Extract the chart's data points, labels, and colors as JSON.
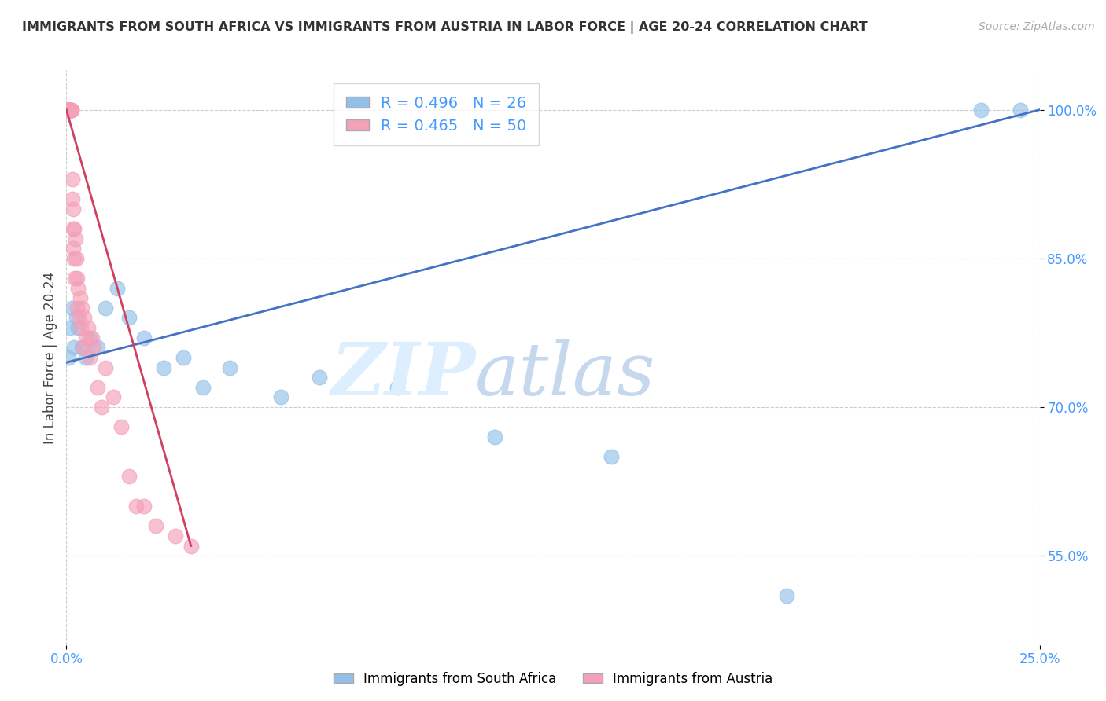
{
  "title": "IMMIGRANTS FROM SOUTH AFRICA VS IMMIGRANTS FROM AUSTRIA IN LABOR FORCE | AGE 20-24 CORRELATION CHART",
  "source": "Source: ZipAtlas.com",
  "ylabel": "In Labor Force | Age 20-24",
  "x_min": 0.0,
  "x_max": 25.0,
  "y_min": 46.0,
  "y_max": 104.0,
  "yticks": [
    55.0,
    70.0,
    85.0,
    100.0
  ],
  "ytick_labels": [
    "55.0%",
    "70.0%",
    "85.0%",
    "100.0%"
  ],
  "legend_label_blue": "Immigrants from South Africa",
  "legend_label_pink": "Immigrants from Austria",
  "R_blue": 0.496,
  "N_blue": 26,
  "R_pink": 0.465,
  "N_pink": 50,
  "blue_color": "#92C0E8",
  "pink_color": "#F4A0B8",
  "blue_line_color": "#4472C4",
  "pink_line_color": "#D04060",
  "blue_x": [
    0.05,
    0.1,
    0.15,
    0.2,
    0.25,
    0.3,
    0.4,
    0.5,
    0.6,
    0.8,
    1.0,
    1.3,
    1.6,
    2.0,
    2.5,
    3.0,
    3.5,
    4.2,
    5.5,
    6.5,
    8.5,
    11.0,
    14.0,
    18.5,
    23.5,
    24.5
  ],
  "blue_y": [
    75.0,
    78.0,
    80.0,
    76.0,
    79.0,
    78.0,
    76.0,
    75.0,
    77.0,
    76.0,
    80.0,
    82.0,
    79.0,
    77.0,
    74.0,
    75.0,
    72.0,
    74.0,
    71.0,
    73.0,
    72.0,
    67.0,
    65.0,
    51.0,
    100.0,
    100.0
  ],
  "pink_x": [
    0.02,
    0.03,
    0.04,
    0.05,
    0.06,
    0.07,
    0.08,
    0.08,
    0.09,
    0.1,
    0.1,
    0.11,
    0.12,
    0.13,
    0.14,
    0.15,
    0.16,
    0.17,
    0.18,
    0.18,
    0.19,
    0.2,
    0.22,
    0.23,
    0.25,
    0.27,
    0.28,
    0.3,
    0.32,
    0.35,
    0.38,
    0.4,
    0.42,
    0.45,
    0.5,
    0.55,
    0.6,
    0.65,
    0.7,
    0.8,
    0.9,
    1.0,
    1.2,
    1.4,
    1.6,
    1.8,
    2.0,
    2.3,
    2.8,
    3.2
  ],
  "pink_y": [
    100.0,
    100.0,
    100.0,
    100.0,
    100.0,
    100.0,
    100.0,
    100.0,
    100.0,
    100.0,
    100.0,
    100.0,
    100.0,
    100.0,
    100.0,
    91.0,
    93.0,
    88.0,
    90.0,
    86.0,
    88.0,
    85.0,
    83.0,
    87.0,
    85.0,
    83.0,
    80.0,
    82.0,
    79.0,
    81.0,
    78.0,
    80.0,
    76.0,
    79.0,
    77.0,
    78.0,
    75.0,
    77.0,
    76.0,
    72.0,
    70.0,
    74.0,
    71.0,
    68.0,
    63.0,
    60.0,
    60.0,
    58.0,
    57.0,
    56.0
  ],
  "blue_line_x0": 0.0,
  "blue_line_y0": 74.5,
  "blue_line_x1": 25.0,
  "blue_line_y1": 100.0,
  "pink_line_x0": 0.0,
  "pink_line_y0": 100.0,
  "pink_line_x1": 3.2,
  "pink_line_y1": 56.0
}
